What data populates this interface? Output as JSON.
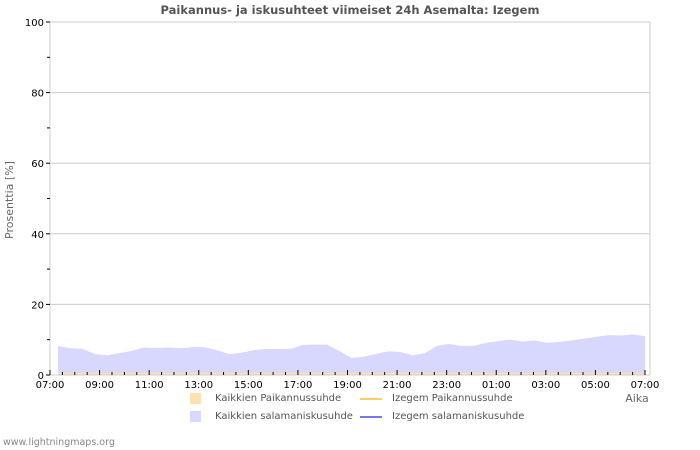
{
  "chart_data": {
    "type": "area",
    "title": "Paikannus- ja iskusuhteet viimeiset 24h Asemalta: Izegem",
    "xlabel": "Aika",
    "ylabel": "Prosenttia   [%]",
    "ylim": [
      0,
      100
    ],
    "yticks": [
      0,
      20,
      40,
      60,
      80,
      100
    ],
    "xticks": [
      "07:00",
      "09:00",
      "11:00",
      "13:00",
      "15:00",
      "17:00",
      "19:00",
      "21:00",
      "23:00",
      "01:00",
      "03:00",
      "05:00",
      "07:00"
    ],
    "grid": true,
    "legend_position": "bottom",
    "x": [
      "07:00",
      "07:30",
      "08:00",
      "08:30",
      "09:00",
      "09:30",
      "10:00",
      "10:30",
      "11:00",
      "11:30",
      "12:00",
      "12:30",
      "13:00",
      "13:30",
      "14:00",
      "14:30",
      "15:00",
      "15:30",
      "16:00",
      "16:30",
      "17:00",
      "17:30",
      "18:00",
      "18:30",
      "19:00",
      "19:30",
      "20:00",
      "20:30",
      "21:00",
      "21:30",
      "22:00",
      "22:30",
      "23:00",
      "23:30",
      "00:00",
      "00:30",
      "01:00",
      "01:30",
      "02:00",
      "02:30",
      "03:00",
      "03:30",
      "04:00",
      "04:30",
      "05:00",
      "05:30",
      "06:00",
      "06:30",
      "07:00"
    ],
    "series": [
      {
        "name": "Kaikkien Paikannussuhde",
        "type": "area",
        "color": "#ffe0b0",
        "values": [
          0.6,
          0.6,
          0.6,
          0.6,
          0.6,
          0.6,
          0.6,
          0.6,
          0.6,
          0.6,
          0.6,
          0.6,
          0.6,
          0.6,
          0.6,
          0.6,
          0.6,
          0.6,
          0.6,
          0.6,
          0.6,
          0.6,
          0.6,
          0.6,
          0.6,
          0.6,
          0.6,
          0.6,
          0.6,
          0.6,
          0.6,
          0.6,
          0.6,
          0.6,
          0.6,
          0.6,
          0.6,
          0.6,
          0.6,
          0.6,
          0.6,
          0.6,
          0.6,
          0.6,
          0.6,
          0.6,
          0.6,
          0.6,
          0.6
        ]
      },
      {
        "name": "Kaikkien salamaniskusuhde",
        "type": "area",
        "color": "#d8d8ff",
        "values": [
          8.2,
          7.6,
          7.4,
          6.0,
          5.6,
          6.2,
          6.8,
          7.8,
          7.6,
          7.8,
          7.6,
          7.9,
          7.9,
          7.0,
          5.9,
          6.3,
          7.0,
          7.4,
          7.4,
          7.4,
          8.5,
          8.6,
          8.6,
          6.8,
          4.8,
          5.2,
          6.0,
          6.7,
          6.5,
          5.6,
          6.2,
          8.3,
          8.8,
          8.2,
          8.3,
          9.1,
          9.6,
          10.0,
          9.5,
          9.8,
          9.1,
          9.4,
          9.8,
          10.3,
          10.8,
          11.3,
          11.2,
          11.5,
          11.0
        ]
      },
      {
        "name": "Izegem Paikannussuhde",
        "type": "line",
        "color": "#ffcc66",
        "values": []
      },
      {
        "name": "Izegem salamaniskusuhde",
        "type": "line",
        "color": "#7777ee",
        "values": []
      }
    ]
  },
  "legend": {
    "items": [
      {
        "label": "Kaikkien Paikannussuhde",
        "color": "#ffe0b0",
        "kind": "box"
      },
      {
        "label": "Izegem Paikannussuhde",
        "color": "#ffcc66",
        "kind": "line"
      },
      {
        "label": "Kaikkien salamaniskusuhde",
        "color": "#d8d8ff",
        "kind": "box"
      },
      {
        "label": "Izegem salamaniskusuhde",
        "color": "#7777ee",
        "kind": "line"
      }
    ]
  },
  "footer": {
    "text": "www.lightningmaps.org"
  }
}
